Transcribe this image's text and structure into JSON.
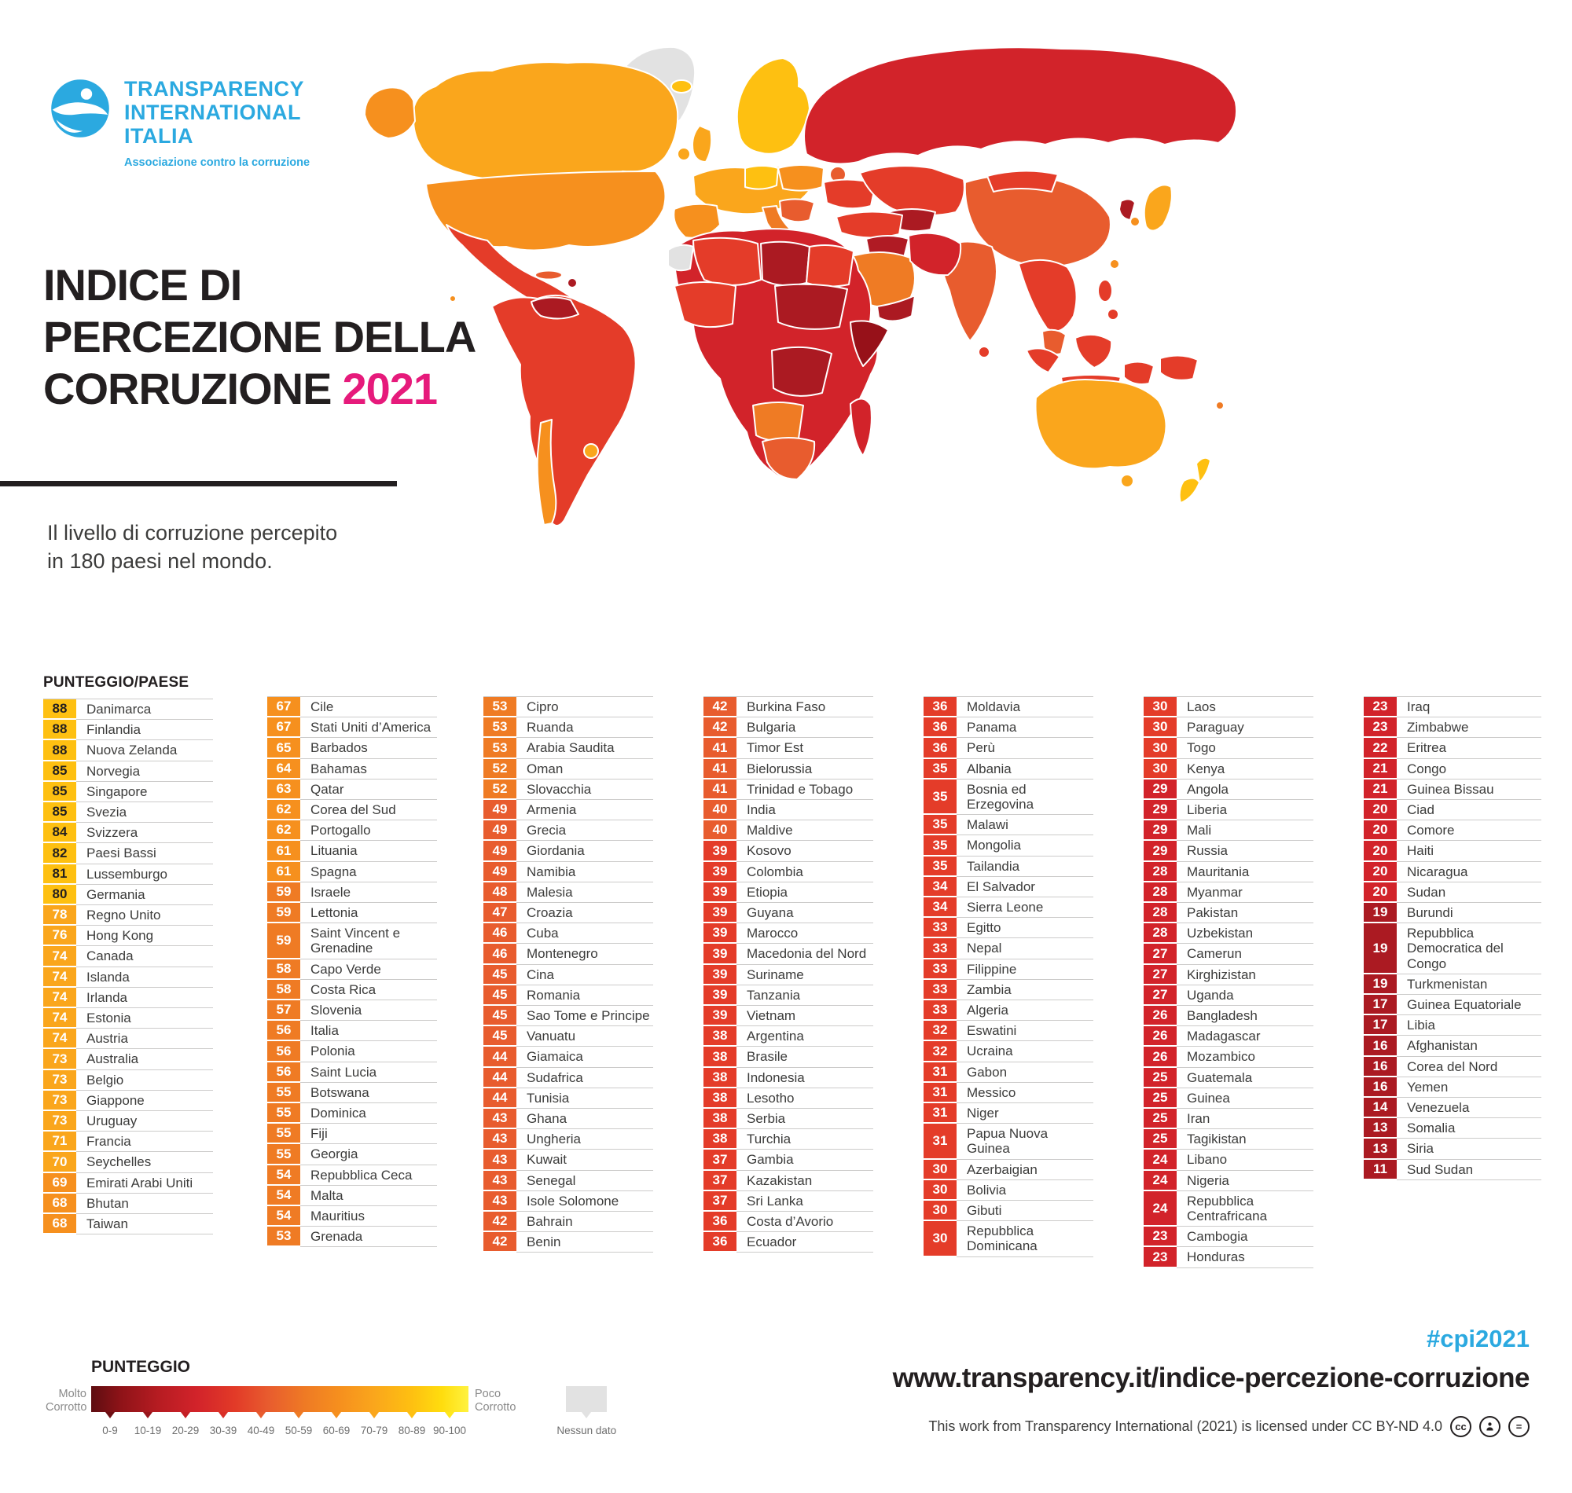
{
  "branding": {
    "org_line1": "TRANSPARENCY",
    "org_line2": "INTERNATIONAL",
    "org_line3": "ITALIA",
    "tagline": "Associazione contro la corruzione"
  },
  "title": {
    "line1": "INDICE DI",
    "line2": "PERCEZIONE DELLA",
    "line3": "CORRUZIONE",
    "year": "2021"
  },
  "subtitle": "Il livello di corruzione percepito\nin 180 paesi nel mondo.",
  "list_header": "PUNTEGGIO/PAESE",
  "legend": {
    "title": "PUNTEGGIO",
    "left_label": "Molto\nCorrotto",
    "right_label": "Poco\nCorrotto",
    "no_data_label": "Nessun dato",
    "ticks": [
      "0-9",
      "10-19",
      "20-29",
      "30-39",
      "40-49",
      "50-59",
      "60-69",
      "70-79",
      "80-89",
      "90-100"
    ],
    "tick_colors": [
      "#6E0F13",
      "#99151B",
      "#C41E24",
      "#D92F27",
      "#E85C2E",
      "#EF7B24",
      "#F6901E",
      "#FAA61C",
      "#FEC011",
      "#FFE81C"
    ]
  },
  "footer": {
    "hashtag": "#cpi2021",
    "url": "www.transparency.it/indice-percezione-corruzione",
    "license": "This work from Transparency International (2021) is licensed under CC BY-ND 4.0"
  },
  "colors": {
    "ti_blue": "#2BA9E0",
    "accent_pink": "#E61A7B",
    "text_dark": "#231F20",
    "map_no_data": "#E2E2E2",
    "bands": {
      "1": "#AB1A22",
      "2": "#D2232A",
      "3": "#E43C29",
      "4": "#E85C2E",
      "5": "#EF7B24",
      "6": "#F6901E",
      "7": "#FAA61C",
      "8": "#FEC011",
      "9": "#FFE81C"
    },
    "dark_text_score_min": 80
  },
  "chart_data": {
    "type": "choropleth",
    "title": "Indice di Percezione della Corruzione 2021",
    "subtitle": "Il livello di corruzione percepito in 180 paesi nel mondo.",
    "scale": {
      "min": 0,
      "max": 100,
      "low_label": "Molto Corrotto",
      "high_label": "Poco Corrotto",
      "bins": [
        "0-9",
        "10-19",
        "20-29",
        "30-39",
        "40-49",
        "50-59",
        "60-69",
        "70-79",
        "80-89",
        "90-100"
      ],
      "no_data": "Nessun dato"
    },
    "columns": [
      [
        {
          "score": 88,
          "country": "Danimarca"
        },
        {
          "score": 88,
          "country": "Finlandia"
        },
        {
          "score": 88,
          "country": "Nuova Zelanda"
        },
        {
          "score": 85,
          "country": "Norvegia"
        },
        {
          "score": 85,
          "country": "Singapore"
        },
        {
          "score": 85,
          "country": "Svezia"
        },
        {
          "score": 84,
          "country": "Svizzera"
        },
        {
          "score": 82,
          "country": "Paesi Bassi"
        },
        {
          "score": 81,
          "country": "Lussemburgo"
        },
        {
          "score": 80,
          "country": "Germania"
        },
        {
          "score": 78,
          "country": "Regno Unito"
        },
        {
          "score": 76,
          "country": "Hong Kong"
        },
        {
          "score": 74,
          "country": "Canada"
        },
        {
          "score": 74,
          "country": "Islanda"
        },
        {
          "score": 74,
          "country": "Irlanda"
        },
        {
          "score": 74,
          "country": "Estonia"
        },
        {
          "score": 74,
          "country": "Austria"
        },
        {
          "score": 73,
          "country": "Australia"
        },
        {
          "score": 73,
          "country": "Belgio"
        },
        {
          "score": 73,
          "country": "Giappone"
        },
        {
          "score": 73,
          "country": "Uruguay"
        },
        {
          "score": 71,
          "country": "Francia"
        },
        {
          "score": 70,
          "country": "Seychelles"
        },
        {
          "score": 69,
          "country": "Emirati Arabi Uniti"
        },
        {
          "score": 68,
          "country": "Bhutan"
        },
        {
          "score": 68,
          "country": "Taiwan"
        }
      ],
      [
        {
          "score": 67,
          "country": "Cile"
        },
        {
          "score": 67,
          "country": "Stati Uniti d’America"
        },
        {
          "score": 65,
          "country": "Barbados"
        },
        {
          "score": 64,
          "country": "Bahamas"
        },
        {
          "score": 63,
          "country": "Qatar"
        },
        {
          "score": 62,
          "country": "Corea del Sud"
        },
        {
          "score": 62,
          "country": "Portogallo"
        },
        {
          "score": 61,
          "country": "Lituania"
        },
        {
          "score": 61,
          "country": "Spagna"
        },
        {
          "score": 59,
          "country": "Israele"
        },
        {
          "score": 59,
          "country": "Lettonia"
        },
        {
          "score": 59,
          "country": "Saint Vincent e Grenadine"
        },
        {
          "score": 58,
          "country": "Capo Verde"
        },
        {
          "score": 58,
          "country": "Costa Rica"
        },
        {
          "score": 57,
          "country": "Slovenia"
        },
        {
          "score": 56,
          "country": "Italia"
        },
        {
          "score": 56,
          "country": "Polonia"
        },
        {
          "score": 56,
          "country": "Saint Lucia"
        },
        {
          "score": 55,
          "country": "Botswana"
        },
        {
          "score": 55,
          "country": "Dominica"
        },
        {
          "score": 55,
          "country": "Fiji"
        },
        {
          "score": 55,
          "country": "Georgia"
        },
        {
          "score": 54,
          "country": "Repubblica Ceca"
        },
        {
          "score": 54,
          "country": "Malta"
        },
        {
          "score": 54,
          "country": "Mauritius"
        },
        {
          "score": 53,
          "country": "Grenada"
        }
      ],
      [
        {
          "score": 53,
          "country": "Cipro"
        },
        {
          "score": 53,
          "country": "Ruanda"
        },
        {
          "score": 53,
          "country": "Arabia Saudita"
        },
        {
          "score": 52,
          "country": "Oman"
        },
        {
          "score": 52,
          "country": "Slovacchia"
        },
        {
          "score": 49,
          "country": "Armenia"
        },
        {
          "score": 49,
          "country": "Grecia"
        },
        {
          "score": 49,
          "country": "Giordania"
        },
        {
          "score": 49,
          "country": "Namibia"
        },
        {
          "score": 48,
          "country": "Malesia"
        },
        {
          "score": 47,
          "country": "Croazia"
        },
        {
          "score": 46,
          "country": "Cuba"
        },
        {
          "score": 46,
          "country": "Montenegro"
        },
        {
          "score": 45,
          "country": "Cina"
        },
        {
          "score": 45,
          "country": "Romania"
        },
        {
          "score": 45,
          "country": "Sao Tome e Principe"
        },
        {
          "score": 45,
          "country": "Vanuatu"
        },
        {
          "score": 44,
          "country": "Giamaica"
        },
        {
          "score": 44,
          "country": "Sudafrica"
        },
        {
          "score": 44,
          "country": "Tunisia"
        },
        {
          "score": 43,
          "country": "Ghana"
        },
        {
          "score": 43,
          "country": "Ungheria"
        },
        {
          "score": 43,
          "country": "Kuwait"
        },
        {
          "score": 43,
          "country": "Senegal"
        },
        {
          "score": 43,
          "country": "Isole Solomone"
        },
        {
          "score": 42,
          "country": "Bahrain"
        },
        {
          "score": 42,
          "country": "Benin"
        }
      ],
      [
        {
          "score": 42,
          "country": "Burkina Faso"
        },
        {
          "score": 42,
          "country": "Bulgaria"
        },
        {
          "score": 41,
          "country": "Timor Est"
        },
        {
          "score": 41,
          "country": "Bielorussia"
        },
        {
          "score": 41,
          "country": "Trinidad e Tobago"
        },
        {
          "score": 40,
          "country": "India"
        },
        {
          "score": 40,
          "country": "Maldive"
        },
        {
          "score": 39,
          "country": "Kosovo"
        },
        {
          "score": 39,
          "country": "Colombia"
        },
        {
          "score": 39,
          "country": "Etiopia"
        },
        {
          "score": 39,
          "country": "Guyana"
        },
        {
          "score": 39,
          "country": "Marocco"
        },
        {
          "score": 39,
          "country": "Macedonia del Nord"
        },
        {
          "score": 39,
          "country": "Suriname"
        },
        {
          "score": 39,
          "country": "Tanzania"
        },
        {
          "score": 39,
          "country": "Vietnam"
        },
        {
          "score": 38,
          "country": "Argentina"
        },
        {
          "score": 38,
          "country": "Brasile"
        },
        {
          "score": 38,
          "country": "Indonesia"
        },
        {
          "score": 38,
          "country": "Lesotho"
        },
        {
          "score": 38,
          "country": "Serbia"
        },
        {
          "score": 38,
          "country": "Turchia"
        },
        {
          "score": 37,
          "country": "Gambia"
        },
        {
          "score": 37,
          "country": "Kazakistan"
        },
        {
          "score": 37,
          "country": "Sri Lanka"
        },
        {
          "score": 36,
          "country": "Costa d’Avorio"
        },
        {
          "score": 36,
          "country": "Ecuador"
        }
      ],
      [
        {
          "score": 36,
          "country": "Moldavia"
        },
        {
          "score": 36,
          "country": "Panama"
        },
        {
          "score": 36,
          "country": "Perù"
        },
        {
          "score": 35,
          "country": "Albania"
        },
        {
          "score": 35,
          "country": "Bosnia ed Erzegovina"
        },
        {
          "score": 35,
          "country": "Malawi"
        },
        {
          "score": 35,
          "country": "Mongolia"
        },
        {
          "score": 35,
          "country": "Tailandia"
        },
        {
          "score": 34,
          "country": "El Salvador"
        },
        {
          "score": 34,
          "country": "Sierra Leone"
        },
        {
          "score": 33,
          "country": "Egitto"
        },
        {
          "score": 33,
          "country": "Nepal"
        },
        {
          "score": 33,
          "country": "Filippine"
        },
        {
          "score": 33,
          "country": "Zambia"
        },
        {
          "score": 33,
          "country": "Algeria"
        },
        {
          "score": 32,
          "country": "Eswatini"
        },
        {
          "score": 32,
          "country": "Ucraina"
        },
        {
          "score": 31,
          "country": "Gabon"
        },
        {
          "score": 31,
          "country": "Messico"
        },
        {
          "score": 31,
          "country": "Niger"
        },
        {
          "score": 31,
          "country": "Papua Nuova Guinea"
        },
        {
          "score": 30,
          "country": "Azerbaigian"
        },
        {
          "score": 30,
          "country": "Bolivia"
        },
        {
          "score": 30,
          "country": "Gibuti"
        },
        {
          "score": 30,
          "country": "Repubblica Dominicana"
        }
      ],
      [
        {
          "score": 30,
          "country": "Laos"
        },
        {
          "score": 30,
          "country": "Paraguay"
        },
        {
          "score": 30,
          "country": "Togo"
        },
        {
          "score": 30,
          "country": "Kenya"
        },
        {
          "score": 29,
          "country": "Angola"
        },
        {
          "score": 29,
          "country": "Liberia"
        },
        {
          "score": 29,
          "country": "Mali"
        },
        {
          "score": 29,
          "country": "Russia"
        },
        {
          "score": 28,
          "country": "Mauritania"
        },
        {
          "score": 28,
          "country": "Myanmar"
        },
        {
          "score": 28,
          "country": "Pakistan"
        },
        {
          "score": 28,
          "country": "Uzbekistan"
        },
        {
          "score": 27,
          "country": "Camerun"
        },
        {
          "score": 27,
          "country": "Kirghizistan"
        },
        {
          "score": 27,
          "country": "Uganda"
        },
        {
          "score": 26,
          "country": "Bangladesh"
        },
        {
          "score": 26,
          "country": "Madagascar"
        },
        {
          "score": 26,
          "country": "Mozambico"
        },
        {
          "score": 25,
          "country": "Guatemala"
        },
        {
          "score": 25,
          "country": "Guinea"
        },
        {
          "score": 25,
          "country": "Iran"
        },
        {
          "score": 25,
          "country": "Tagikistan"
        },
        {
          "score": 24,
          "country": "Libano"
        },
        {
          "score": 24,
          "country": "Nigeria"
        },
        {
          "score": 24,
          "country": "Repubblica Centrafricana"
        },
        {
          "score": 23,
          "country": "Cambogia"
        },
        {
          "score": 23,
          "country": "Honduras"
        }
      ],
      [
        {
          "score": 23,
          "country": "Iraq"
        },
        {
          "score": 23,
          "country": "Zimbabwe"
        },
        {
          "score": 22,
          "country": "Eritrea"
        },
        {
          "score": 21,
          "country": "Congo"
        },
        {
          "score": 21,
          "country": "Guinea Bissau"
        },
        {
          "score": 20,
          "country": "Ciad"
        },
        {
          "score": 20,
          "country": "Comore"
        },
        {
          "score": 20,
          "country": "Haiti"
        },
        {
          "score": 20,
          "country": "Nicaragua"
        },
        {
          "score": 20,
          "country": "Sudan"
        },
        {
          "score": 19,
          "country": "Burundi"
        },
        {
          "score": 19,
          "country": "Repubblica Democratica del Congo"
        },
        {
          "score": 19,
          "country": "Turkmenistan"
        },
        {
          "score": 17,
          "country": "Guinea Equatoriale"
        },
        {
          "score": 17,
          "country": "Libia"
        },
        {
          "score": 16,
          "country": "Afghanistan"
        },
        {
          "score": 16,
          "country": "Corea del Nord"
        },
        {
          "score": 16,
          "country": "Yemen"
        },
        {
          "score": 14,
          "country": "Venezuela"
        },
        {
          "score": 13,
          "country": "Somalia"
        },
        {
          "score": 13,
          "country": "Siria"
        },
        {
          "score": 11,
          "country": "Sud Sudan"
        }
      ]
    ]
  }
}
